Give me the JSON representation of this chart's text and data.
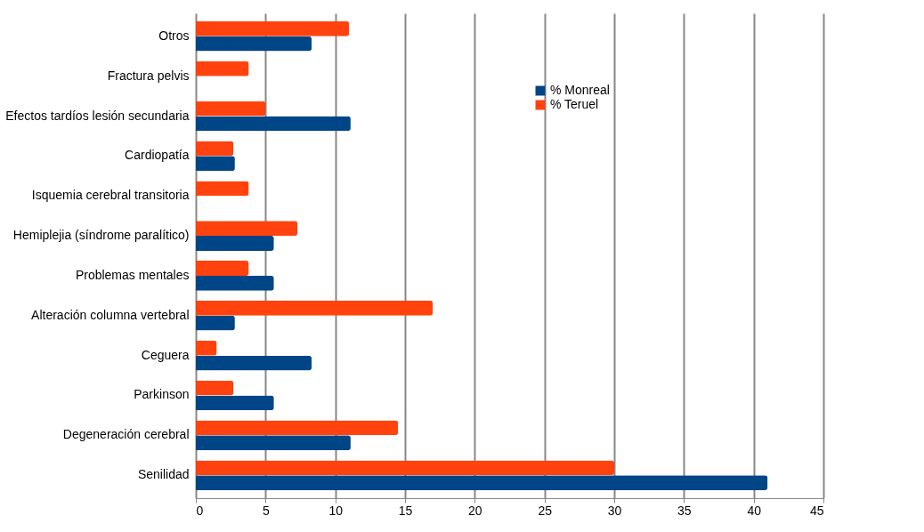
{
  "chart_data": {
    "type": "bar",
    "orientation": "horizontal",
    "categories": [
      "Otros",
      "Fractura pelvis",
      "Efectos tardíos lesión secundaria",
      "Cardiopatía",
      "Isquemia cerebral transitoria",
      "Hemiplejia (síndrome paralítico)",
      "Problemas mentales",
      "Alteración columna vertebral",
      "Ceguera",
      "Parkinson",
      "Degeneración cerebral",
      "Senilidad"
    ],
    "series": [
      {
        "name": "% Monreal",
        "color": "#004586",
        "values": [
          8.3,
          null,
          11.1,
          2.8,
          null,
          5.6,
          5.6,
          2.8,
          8.3,
          5.6,
          11.1,
          41
        ]
      },
      {
        "name": "% Teruel",
        "color": "#ff420e",
        "values": [
          11,
          3.8,
          5,
          2.7,
          3.8,
          7.3,
          3.8,
          17,
          1.5,
          2.7,
          14.5,
          30
        ]
      }
    ],
    "xlim": [
      0,
      45
    ],
    "xticks": [
      0,
      5,
      10,
      15,
      20,
      25,
      30,
      35,
      40,
      45
    ],
    "grid": "x",
    "legend": "top right"
  }
}
